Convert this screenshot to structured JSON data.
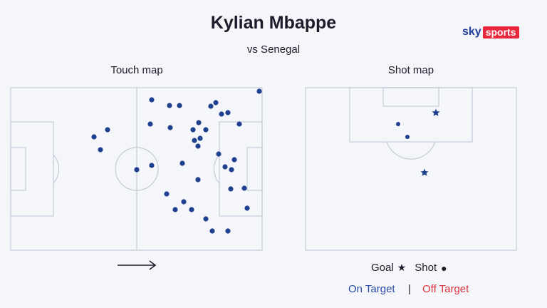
{
  "header": {
    "title": "Kylian Mbappe",
    "subtitle": "vs Senegal"
  },
  "branding": {
    "sky": "sky",
    "sports": "sports"
  },
  "touch_map": {
    "label": "Touch map"
  },
  "shot_map": {
    "label": "Shot map"
  },
  "legend": {
    "goal_label": "Goal",
    "goal_symbol": "★",
    "shot_label": "Shot",
    "shot_symbol": "●",
    "on_target": "On Target",
    "separator": "|",
    "off_target": "Off Target"
  },
  "colors": {
    "background": "#f5f6fa",
    "pitch_lines": "#c5cad8",
    "marker": "#1f3f8f",
    "on_target": "#2b4aa8",
    "off_target": "#e0303e",
    "brand_red": "#e8283c",
    "brand_blue": "#1f3f9a"
  }
}
